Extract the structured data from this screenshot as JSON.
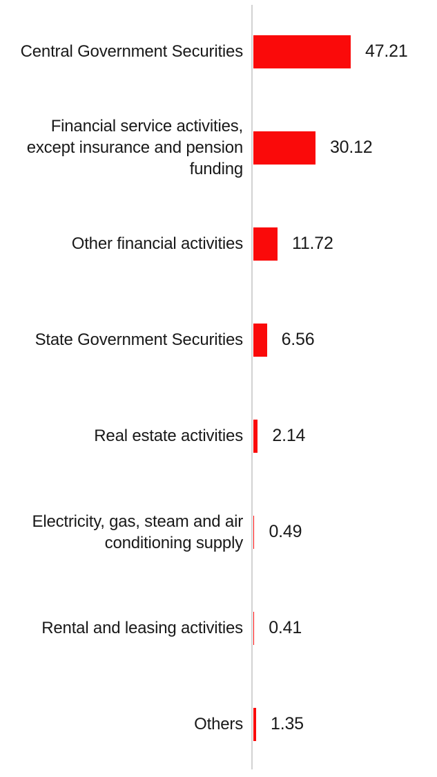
{
  "chart_data": {
    "type": "bar",
    "orientation": "horizontal",
    "title": "",
    "xlabel": "",
    "ylabel": "",
    "grid": false,
    "legend_position": "none",
    "xlim": [
      0,
      50
    ],
    "bar_color": "#fa0a0a",
    "axis_line_color": "#d2d2d2",
    "categories": [
      "Central Government Securities",
      "Financial service activities, except insurance and pension funding",
      "Other financial activities",
      "State Government Securities",
      "Real estate activities",
      "Electricity, gas, steam and air conditioning supply",
      "Rental and leasing activities",
      "Others"
    ],
    "values": [
      47.21,
      30.12,
      11.72,
      6.56,
      2.14,
      0.49,
      0.41,
      1.35
    ],
    "rows": [
      {
        "label": "Central Government Securities",
        "value_label": "47.21"
      },
      {
        "label": "Financial service activities,\nexcept insurance and pension\nfunding",
        "value_label": "30.12"
      },
      {
        "label": "Other financial activities",
        "value_label": "11.72"
      },
      {
        "label": "State Government Securities",
        "value_label": "6.56"
      },
      {
        "label": "Real estate activities",
        "value_label": "2.14"
      },
      {
        "label": "Electricity, gas, steam and air\nconditioning supply",
        "value_label": "0.49"
      },
      {
        "label": "Rental and leasing activities",
        "value_label": "0.41"
      },
      {
        "label": "Others",
        "value_label": "1.35"
      }
    ]
  }
}
